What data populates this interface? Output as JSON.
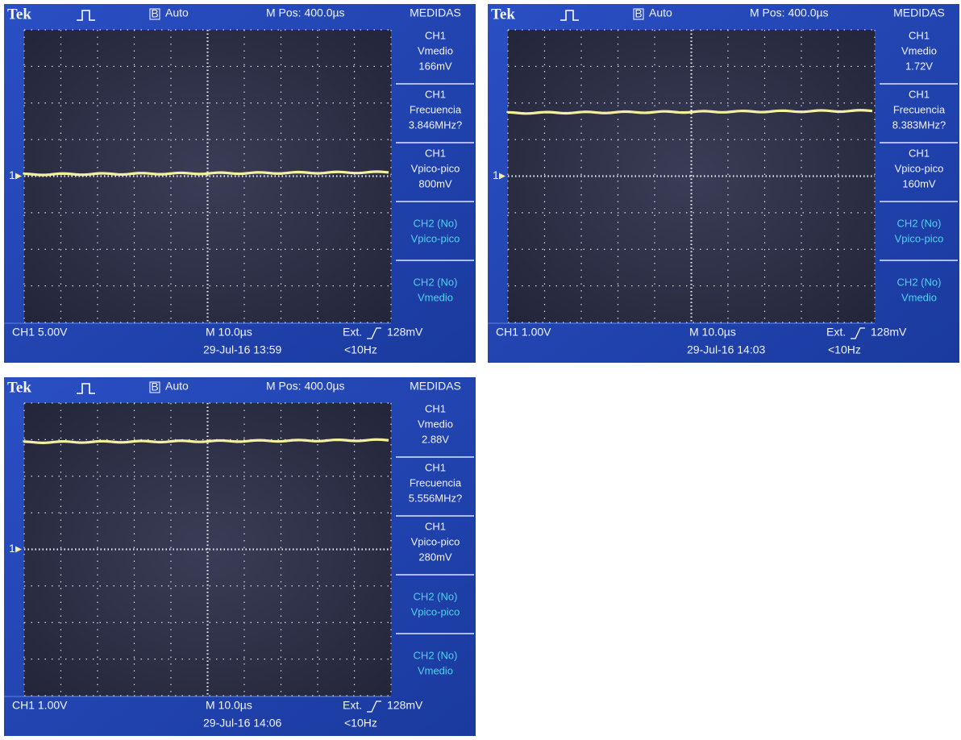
{
  "screens": [
    {
      "header": {
        "brand": "Tek",
        "mode_box": "B",
        "mode": "Auto",
        "position": "M Pos: 400.0µs",
        "menu": "MEDIDAS"
      },
      "marker": "1",
      "measurements": [
        {
          "channel": "CH1",
          "name": "Vmedio",
          "value": "166mV"
        },
        {
          "channel": "CH1",
          "name": "Frecuencia",
          "value": "3.846MHz?"
        },
        {
          "channel": "CH1",
          "name": "Vpico-pico",
          "value": "800mV"
        },
        {
          "channel": "CH2 (No)",
          "name": "Vpico-pico"
        },
        {
          "channel": "CH2 (No)",
          "name": "Vmedio"
        }
      ],
      "footer": {
        "channel": "CH1 5.00V",
        "timebase": "M 10.0µs",
        "trigger_source": "Ext.",
        "trigger_level": "128mV",
        "datetime": "29-Jul-16 13:59",
        "trigger_freq": "<10Hz"
      }
    },
    {
      "header": {
        "brand": "Tek",
        "mode_box": "B",
        "mode": "Auto",
        "position": "M Pos: 400.0µs",
        "menu": "MEDIDAS"
      },
      "marker": "1",
      "measurements": [
        {
          "channel": "CH1",
          "name": "Vmedio",
          "value": "1.72V"
        },
        {
          "channel": "CH1",
          "name": "Frecuencia",
          "value": "8.383MHz?"
        },
        {
          "channel": "CH1",
          "name": "Vpico-pico",
          "value": "160mV"
        },
        {
          "channel": "CH2 (No)",
          "name": "Vpico-pico"
        },
        {
          "channel": "CH2 (No)",
          "name": "Vmedio"
        }
      ],
      "footer": {
        "channel": "CH1 1.00V",
        "timebase": "M 10.0µs",
        "trigger_source": "Ext.",
        "trigger_level": "128mV",
        "datetime": "29-Jul-16 14:03",
        "trigger_freq": "<10Hz"
      }
    },
    {
      "header": {
        "brand": "Tek",
        "mode_box": "B",
        "mode": "Auto",
        "position": "M Pos: 400.0µs",
        "menu": "MEDIDAS"
      },
      "marker": "1",
      "measurements": [
        {
          "channel": "CH1",
          "name": "Vmedio",
          "value": "2.88V"
        },
        {
          "channel": "CH1",
          "name": "Frecuencia",
          "value": "5.556MHz?"
        },
        {
          "channel": "CH1",
          "name": "Vpico-pico",
          "value": "280mV"
        },
        {
          "channel": "CH2 (No)",
          "name": "Vpico-pico"
        },
        {
          "channel": "CH2 (No)",
          "name": "Vmedio"
        }
      ],
      "footer": {
        "channel": "CH1 1.00V",
        "timebase": "M 10.0µs",
        "trigger_source": "Ext.",
        "trigger_level": "128mV",
        "datetime": "29-Jul-16 14:06",
        "trigger_freq": "<10Hz"
      }
    }
  ]
}
